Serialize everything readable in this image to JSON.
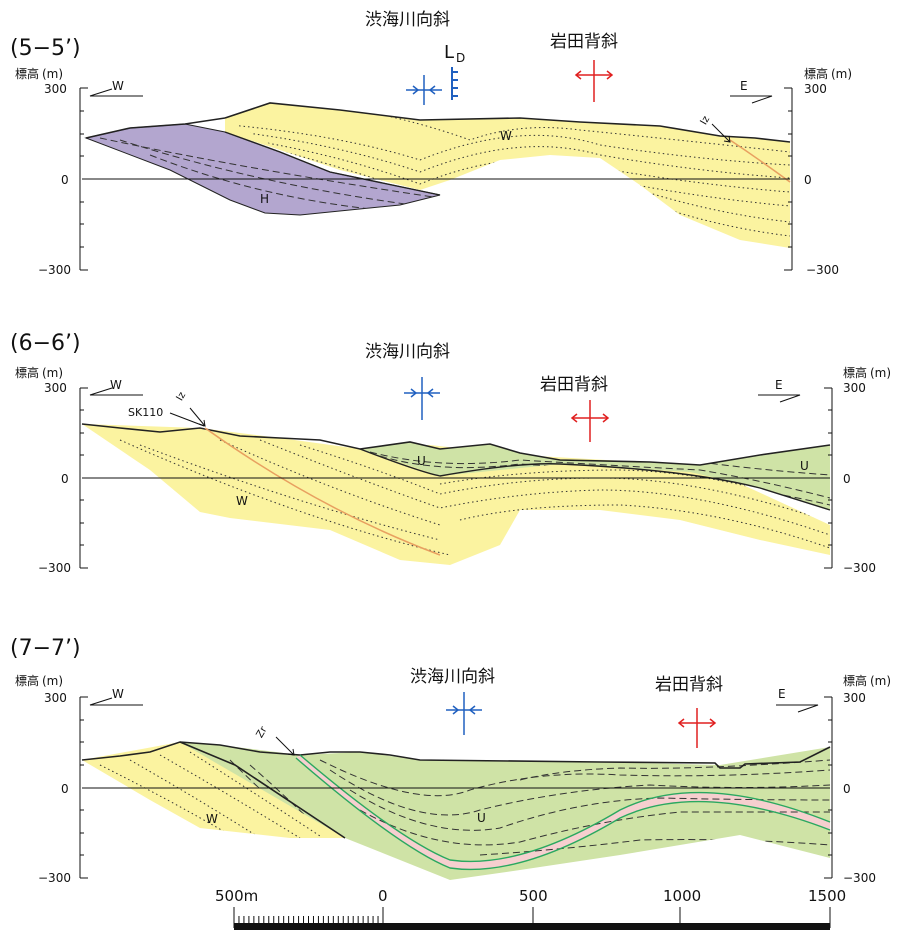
{
  "sections": [
    {
      "title": "(5−5’)",
      "syncline_label": "渋海川向斜",
      "anticline_label": "岩田背斜",
      "fault_label": "L",
      "fault_label_sub": "D",
      "west_label": "W",
      "east_label": "E",
      "elev_label_left": "標高",
      "elev_label_right": "標高",
      "unit": "(m)",
      "ticks": [
        "300",
        "0",
        "−300"
      ],
      "unit_labels": [
        "W",
        "H"
      ],
      "marker_label": "Iz"
    },
    {
      "title": "(6−6’)",
      "syncline_label": "渋海川向斜",
      "anticline_label": "岩田背斜",
      "west_label": "W",
      "east_label": "E",
      "elev_label_left": "標高",
      "elev_label_right": "標高",
      "unit": "(m)",
      "ticks": [
        "300",
        "0",
        "−300"
      ],
      "unit_labels": [
        "W",
        "U",
        "U"
      ],
      "marker_label": "Iz",
      "marker_label2": "SK110"
    },
    {
      "title": "(7−7’)",
      "syncline_label": "渋海川向斜",
      "anticline_label": "岩田背斜",
      "west_label": "W",
      "east_label": "E",
      "elev_label_left": "標高",
      "elev_label_right": "標高",
      "unit": "(m)",
      "ticks": [
        "300",
        "0",
        "−300"
      ],
      "unit_labels": [
        "W",
        "U"
      ],
      "marker_label": "Zr"
    }
  ],
  "scale": {
    "labels": [
      "500m",
      "0",
      "500",
      "1000",
      "1500"
    ]
  },
  "colors": {
    "W": "#fbf3a0",
    "H": "#b3a6cf",
    "U": "#cfe3a6",
    "syncline": "#2060c0",
    "anticline": "#e02020",
    "tuff": "#f6cfcf",
    "tuff_edge": "#2aa860"
  }
}
